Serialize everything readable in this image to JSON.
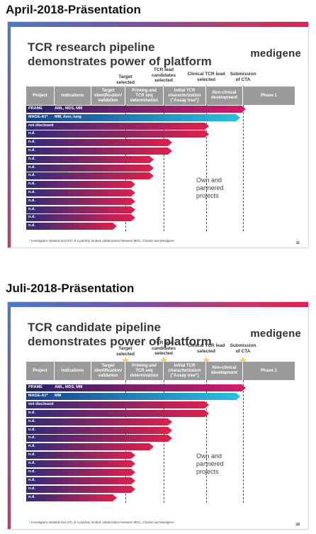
{
  "sections": [
    {
      "heading": "April-2018-Präsentation",
      "slide_title": [
        "TCR research pipeline",
        "demonstrates power of platform"
      ],
      "logo": "medigene",
      "milestones": [
        {
          "label": "Target\nselected"
        },
        {
          "label": "TCR lead\ncandidates\nselected"
        },
        {
          "label": "Clinical TCR lead\nselected"
        },
        {
          "label": "Submission\nof CTA"
        }
      ],
      "columns": [
        "Project",
        "Indications",
        "Target\nidentification/\nvalidation",
        "Priming and\nTCR seq\ndetermination",
        "Initial TCR\ncharacterization\n(\"Assay tree\")",
        "Non-clinical\ndevelopment",
        "Phase 1"
      ],
      "rows": [
        {
          "project": "PRAME",
          "indications": "AML, MDS, MM",
          "progress": 5.0,
          "color": "purple"
        },
        {
          "project": "MAGE-A1*",
          "indications": "MM, liver, lung",
          "progress": 4.85,
          "color": "cyan"
        },
        {
          "project": "not disclosed",
          "indications": "",
          "progress": 4.0,
          "color": "red"
        },
        {
          "project": "n.d.",
          "indications": "",
          "progress": 4.0,
          "color": "red"
        },
        {
          "project": "n.d.",
          "indications": "",
          "progress": 3.0,
          "color": "red"
        },
        {
          "project": "n.d.",
          "indications": "",
          "progress": 3.0,
          "color": "red"
        },
        {
          "project": "n.d.",
          "indications": "",
          "progress": 2.5,
          "color": "red"
        },
        {
          "project": "n.d.",
          "indications": "",
          "progress": 2.5,
          "color": "red"
        },
        {
          "project": "n.d.",
          "indications": "",
          "progress": 2.5,
          "color": "red"
        },
        {
          "project": "n.d.",
          "indications": "",
          "progress": 2.0,
          "color": "red"
        },
        {
          "project": "n.d.",
          "indications": "",
          "progress": 2.0,
          "color": "red"
        },
        {
          "project": "n.d.",
          "indications": "",
          "progress": 2.0,
          "color": "red"
        },
        {
          "project": "n.d.",
          "indications": "",
          "progress": 2.0,
          "color": "red"
        },
        {
          "project": "n.d.",
          "indications": "",
          "progress": 2.0,
          "color": "red"
        },
        {
          "project": "n.d.",
          "indications": "",
          "progress": 1.5,
          "color": "red"
        }
      ],
      "own_label": "Own and\npartnered\nprojects",
      "footnote": "* Investigator-initiated trial (IIT) of a publicly funded collaboration between MDC, Charité and Medigene",
      "page": "11"
    },
    {
      "heading": "Juli-2018-Präsentation",
      "slide_title": [
        "TCR candidate pipeline",
        "demonstrates power of platform"
      ],
      "logo": "medigene",
      "milestones": [
        {
          "label": "Target\nselected"
        },
        {
          "label": "TCR lead\ncandidates\nselected"
        },
        {
          "label": "Clinical TCR lead\nselected"
        },
        {
          "label": "Submission\nof CTA"
        }
      ],
      "columns": [
        "Project",
        "Indications",
        "Target\nidentification/\nvalidation",
        "Priming and\nTCR seq\ndetermination",
        "Initial TCR\ncharacterization\n(\"Assay tree\")",
        "Non-clinical\ndevelopment",
        "Phase 1"
      ],
      "rows": [
        {
          "project": "PRAME",
          "indications": "AML, MDS, MM",
          "progress": 5.0,
          "color": "purple"
        },
        {
          "project": "MAGE-A1*",
          "indications": "MM",
          "progress": 4.85,
          "color": "cyan"
        },
        {
          "project": "not disclosed",
          "indications": "",
          "progress": 4.0,
          "color": "red"
        },
        {
          "project": "n.d.",
          "indications": "",
          "progress": 4.0,
          "color": "red"
        },
        {
          "project": "n.d.",
          "indications": "",
          "progress": 3.0,
          "color": "red"
        },
        {
          "project": "n.d.",
          "indications": "",
          "progress": 3.0,
          "color": "red"
        },
        {
          "project": "n.d.",
          "indications": "",
          "progress": 3.0,
          "color": "red"
        },
        {
          "project": "n.d.",
          "indications": "",
          "progress": 2.5,
          "color": "red"
        },
        {
          "project": "n.d.",
          "indications": "",
          "progress": 2.0,
          "color": "red"
        },
        {
          "project": "n.d.",
          "indications": "",
          "progress": 2.0,
          "color": "red"
        },
        {
          "project": "n.d.",
          "indications": "",
          "progress": 2.0,
          "color": "red"
        },
        {
          "project": "n.d.",
          "indications": "",
          "progress": 2.0,
          "color": "red"
        },
        {
          "project": "n.d.",
          "indications": "",
          "progress": 2.0,
          "color": "red"
        },
        {
          "project": "n.d.",
          "indications": "",
          "progress": 1.5,
          "color": "red"
        }
      ],
      "own_label": "Own and\npartnered\nprojects",
      "footnote": "* Investigator-initiated trial (IIT) of a publicly funded collaboration between MDC, Charité and Medigene",
      "page": "16"
    }
  ],
  "colors": {
    "purple": "#3a2a7a",
    "cyan": "#29c2e0",
    "red": "#e0204a",
    "header_gray": "#9a9a9a"
  }
}
